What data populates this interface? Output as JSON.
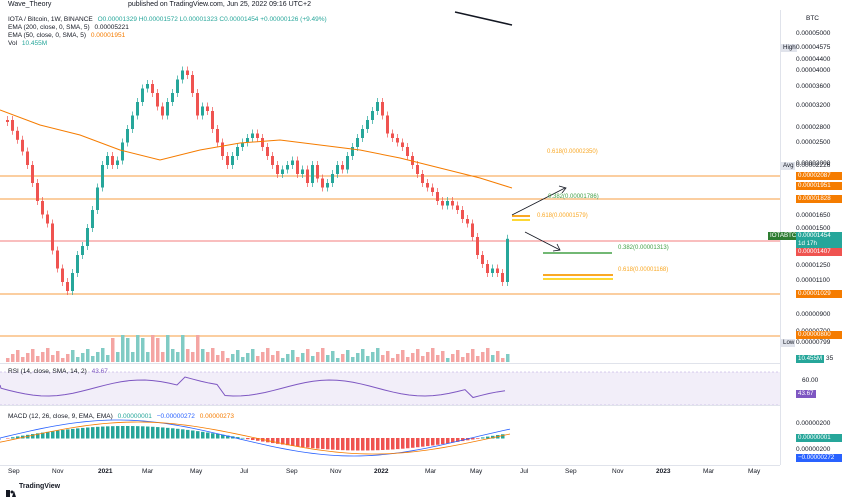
{
  "header": {
    "author": "Wave_Theory",
    "published": "published on TradingView.com, Jun 25, 2022 09:16 UTC+2"
  },
  "legend": {
    "symbol": "IOTA / Bitcoin, 1W, BINANCE",
    "ohlc": "O0.00001329 H0.00001572 L0.00001323 C0.00001454 +0.00000126 (+9.49%)",
    "ema200": "EMA (200, close, 0, SMA, 5)",
    "ema200_value": "0.00005221",
    "ema50": "EMA (50, close, 0, SMA, 5)",
    "ema50_value": "0.00001951",
    "vol": "Vol",
    "vol_value": "10.455M",
    "rsi": "RSI (14, close, SMA, 14, 2)",
    "rsi_value": "43.67",
    "macd": "MACD (12, 26, close, 9, EMA, EMA)",
    "macd_v1": "0.00000001",
    "macd_v2": "−0.00000272",
    "macd_v3": "0.00000273"
  },
  "price_axis": {
    "currency": "BTC",
    "ticks": [
      "0.00005000",
      "0.00004400",
      "0.00004000",
      "0.00003600",
      "0.00003200",
      "0.00002800",
      "0.00002500",
      "0.00002000",
      "0.00001650",
      "0.00001500",
      "0.00001250",
      "0.00001100",
      "0.00000900",
      "0.00000700"
    ],
    "high_label": "High",
    "high_value": "0.00004575",
    "avg_label": "Avg",
    "avg_value": "0.00002226",
    "low_label": "Low",
    "low_value": "0.00000799",
    "tags": [
      "0.00002087",
      "0.00001951",
      "0.00001828",
      "0.00001407",
      "0.00001029",
      "0.00000800"
    ],
    "symbol_tag": "IOTABTC",
    "symbol_price": "0.00001454",
    "countdown": "1d 17h",
    "vol_tag": "10.455M",
    "vol_tick": "35"
  },
  "fib_labels": {
    "f1": "0.618(0.00002350)",
    "f2": "0.382(0.00001786)",
    "f3": "0.618(0.00001579)",
    "f4": "0.382(0.00001313)",
    "f5": "0.618(0.00001168)"
  },
  "rsi_axis": {
    "tick": "60.00",
    "value": "43.67"
  },
  "macd_axis": {
    "t1": "0.00000200",
    "value": "0.00000001",
    "t2": "0.00000200",
    "neg": "−0.00000272"
  },
  "time_axis": [
    "Sep",
    "Nov",
    "2021",
    "Mar",
    "May",
    "Jul",
    "Sep",
    "Nov",
    "2022",
    "Mar",
    "May",
    "Jul",
    "Sep",
    "Nov",
    "2023",
    "Mar",
    "May"
  ],
  "footer": {
    "brand": "TradingView"
  },
  "colors": {
    "up": "#26a69a",
    "down": "#ef5350",
    "ema50": "#f57c00",
    "rsi": "#7e57c2",
    "fib": "#f9a825",
    "green_line": "#43a047"
  }
}
